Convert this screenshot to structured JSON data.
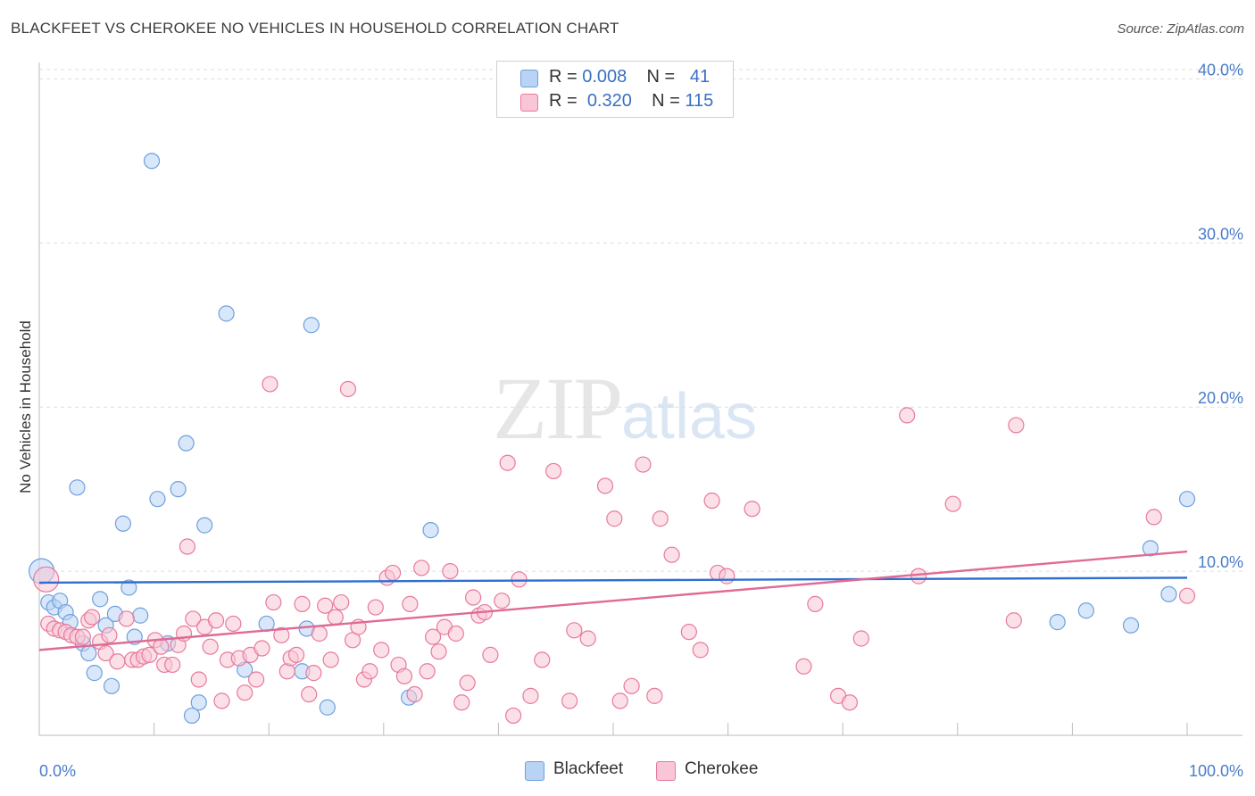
{
  "header": {
    "title": "BLACKFEET VS CHEROKEE NO VEHICLES IN HOUSEHOLD CORRELATION CHART",
    "source": "Source: ZipAtlas.com"
  },
  "watermark": {
    "zip": "ZIP",
    "atlas": "atlas"
  },
  "legend": {
    "rows": [
      {
        "r_label": "R =",
        "r_value": "0.008",
        "n_label": "N =",
        "n_value": "41",
        "color": "#b9d3f5"
      },
      {
        "r_label": "R =",
        "r_value": "0.320",
        "n_label": "N =",
        "n_value": "115",
        "color": "#f8c6d6"
      }
    ]
  },
  "bottom_legend": {
    "items": [
      {
        "label": "Blackfeet",
        "color": "#b9d3f5"
      },
      {
        "label": "Cherokee",
        "color": "#f8c6d6"
      }
    ]
  },
  "chart_data": {
    "type": "scatter",
    "title": "BLACKFEET VS CHEROKEE NO VEHICLES IN HOUSEHOLD CORRELATION CHART",
    "xlabel": "",
    "ylabel": "No Vehicles in Household",
    "xlim": [
      0,
      100
    ],
    "ylim": [
      0,
      41
    ],
    "x_tick_labels": [
      {
        "value": 0,
        "label": "0.0%"
      },
      {
        "value": 100,
        "label": "100.0%"
      }
    ],
    "y_tick_labels": [
      {
        "value": 10,
        "label": "10.0%"
      },
      {
        "value": 20,
        "label": "20.0%"
      },
      {
        "value": 30,
        "label": "30.0%"
      },
      {
        "value": 40,
        "label": "40.0%"
      }
    ],
    "grid": "horizontal dashed",
    "legend_position": "top-center",
    "series": [
      {
        "name": "Blackfeet",
        "color": "#6fa0dc",
        "fill": "#b9d3f5",
        "trend": {
          "x": [
            0,
            100
          ],
          "y": [
            9.3,
            9.6
          ],
          "color": "#2f6fcf"
        },
        "points": [
          [
            0.2,
            10.0
          ],
          [
            0.8,
            8.1
          ],
          [
            1.3,
            7.8
          ],
          [
            1.8,
            8.2
          ],
          [
            2.3,
            7.5
          ],
          [
            2.7,
            6.9
          ],
          [
            3.3,
            15.1
          ],
          [
            3.8,
            5.6
          ],
          [
            4.3,
            5.0
          ],
          [
            4.8,
            3.8
          ],
          [
            5.3,
            8.3
          ],
          [
            5.8,
            6.7
          ],
          [
            6.3,
            3.0
          ],
          [
            6.6,
            7.4
          ],
          [
            7.3,
            12.9
          ],
          [
            7.8,
            9.0
          ],
          [
            8.3,
            6.0
          ],
          [
            8.8,
            7.3
          ],
          [
            9.8,
            35.0
          ],
          [
            10.3,
            14.4
          ],
          [
            11.2,
            5.6
          ],
          [
            12.1,
            15.0
          ],
          [
            12.8,
            17.8
          ],
          [
            13.3,
            1.2
          ],
          [
            13.9,
            2.0
          ],
          [
            14.4,
            12.8
          ],
          [
            16.3,
            25.7
          ],
          [
            17.9,
            4.0
          ],
          [
            19.8,
            6.8
          ],
          [
            22.9,
            3.9
          ],
          [
            23.3,
            6.5
          ],
          [
            23.7,
            25.0
          ],
          [
            25.1,
            1.7
          ],
          [
            32.2,
            2.3
          ],
          [
            34.1,
            12.5
          ],
          [
            91.2,
            7.6
          ],
          [
            88.7,
            6.9
          ],
          [
            95.1,
            6.7
          ],
          [
            98.4,
            8.6
          ],
          [
            96.8,
            11.4
          ],
          [
            100.0,
            14.4
          ]
        ]
      },
      {
        "name": "Cherokee",
        "color": "#e8799c",
        "fill": "#f8c6d6",
        "trend": {
          "x": [
            0,
            100
          ],
          "y": [
            5.2,
            11.2
          ],
          "color": "#e06a94"
        },
        "points": [
          [
            0.6,
            9.5
          ],
          [
            0.8,
            6.8
          ],
          [
            1.3,
            6.5
          ],
          [
            1.8,
            6.4
          ],
          [
            2.3,
            6.3
          ],
          [
            2.8,
            6.1
          ],
          [
            3.3,
            6.0
          ],
          [
            3.8,
            6.0
          ],
          [
            4.3,
            7.0
          ],
          [
            4.6,
            7.2
          ],
          [
            5.3,
            5.7
          ],
          [
            5.8,
            5.0
          ],
          [
            6.1,
            6.1
          ],
          [
            6.8,
            4.5
          ],
          [
            7.6,
            7.1
          ],
          [
            8.1,
            4.6
          ],
          [
            8.6,
            4.6
          ],
          [
            9.1,
            4.8
          ],
          [
            9.6,
            4.9
          ],
          [
            10.1,
            5.8
          ],
          [
            10.6,
            5.4
          ],
          [
            10.9,
            4.3
          ],
          [
            11.6,
            4.3
          ],
          [
            12.1,
            5.5
          ],
          [
            12.6,
            6.2
          ],
          [
            12.9,
            11.5
          ],
          [
            13.4,
            7.1
          ],
          [
            13.9,
            3.4
          ],
          [
            14.4,
            6.6
          ],
          [
            14.9,
            5.4
          ],
          [
            15.4,
            7.0
          ],
          [
            15.9,
            2.1
          ],
          [
            16.4,
            4.6
          ],
          [
            16.9,
            6.8
          ],
          [
            17.4,
            4.7
          ],
          [
            17.9,
            2.6
          ],
          [
            18.4,
            4.9
          ],
          [
            18.9,
            3.4
          ],
          [
            19.4,
            5.3
          ],
          [
            20.1,
            21.4
          ],
          [
            20.4,
            8.1
          ],
          [
            21.1,
            6.1
          ],
          [
            21.6,
            3.9
          ],
          [
            21.9,
            4.7
          ],
          [
            22.4,
            4.9
          ],
          [
            22.9,
            8.0
          ],
          [
            23.5,
            2.5
          ],
          [
            23.9,
            3.8
          ],
          [
            24.4,
            6.2
          ],
          [
            24.9,
            7.9
          ],
          [
            25.4,
            4.6
          ],
          [
            25.8,
            7.2
          ],
          [
            26.3,
            8.1
          ],
          [
            26.9,
            21.1
          ],
          [
            27.3,
            5.8
          ],
          [
            27.8,
            6.6
          ],
          [
            28.3,
            3.4
          ],
          [
            28.8,
            3.9
          ],
          [
            29.3,
            7.8
          ],
          [
            29.8,
            5.2
          ],
          [
            30.3,
            9.6
          ],
          [
            30.8,
            9.9
          ],
          [
            31.3,
            4.3
          ],
          [
            31.8,
            3.6
          ],
          [
            32.3,
            8.0
          ],
          [
            32.7,
            2.5
          ],
          [
            33.3,
            10.2
          ],
          [
            33.8,
            3.9
          ],
          [
            34.3,
            6.0
          ],
          [
            34.8,
            5.1
          ],
          [
            35.3,
            6.6
          ],
          [
            35.8,
            10.0
          ],
          [
            36.3,
            6.2
          ],
          [
            36.8,
            2.0
          ],
          [
            37.3,
            3.2
          ],
          [
            37.8,
            8.4
          ],
          [
            38.3,
            7.3
          ],
          [
            38.8,
            7.5
          ],
          [
            39.3,
            4.9
          ],
          [
            40.3,
            8.2
          ],
          [
            40.8,
            16.6
          ],
          [
            41.3,
            1.2
          ],
          [
            41.8,
            9.5
          ],
          [
            42.8,
            2.4
          ],
          [
            43.8,
            4.6
          ],
          [
            44.8,
            16.1
          ],
          [
            46.2,
            2.1
          ],
          [
            46.6,
            6.4
          ],
          [
            47.8,
            5.9
          ],
          [
            49.3,
            15.2
          ],
          [
            50.1,
            13.2
          ],
          [
            50.6,
            2.1
          ],
          [
            51.6,
            3.0
          ],
          [
            52.6,
            16.5
          ],
          [
            53.6,
            2.4
          ],
          [
            54.1,
            13.2
          ],
          [
            55.1,
            11.0
          ],
          [
            56.6,
            6.3
          ],
          [
            57.6,
            5.2
          ],
          [
            58.6,
            14.3
          ],
          [
            59.1,
            9.9
          ],
          [
            59.9,
            9.7
          ],
          [
            62.1,
            13.8
          ],
          [
            66.6,
            4.2
          ],
          [
            67.6,
            8.0
          ],
          [
            69.6,
            2.4
          ],
          [
            70.6,
            2.0
          ],
          [
            71.6,
            5.9
          ],
          [
            75.6,
            19.5
          ],
          [
            76.6,
            9.7
          ],
          [
            79.6,
            14.1
          ],
          [
            84.9,
            7.0
          ],
          [
            85.1,
            18.9
          ],
          [
            97.1,
            13.3
          ],
          [
            100.0,
            8.5
          ]
        ]
      }
    ]
  }
}
